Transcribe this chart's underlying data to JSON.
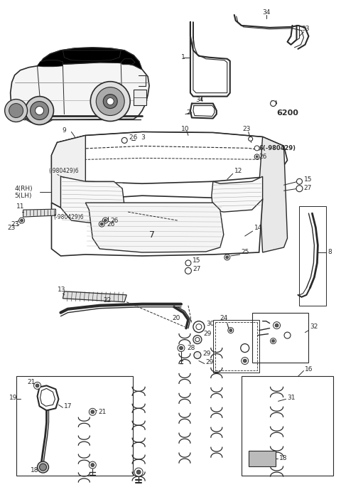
{
  "bg_color": "#ffffff",
  "line_color": "#2a2a2a",
  "fig_width": 4.8,
  "fig_height": 6.85,
  "dpi": 100,
  "label_fs": 6.5,
  "bold_fs": 6.5
}
